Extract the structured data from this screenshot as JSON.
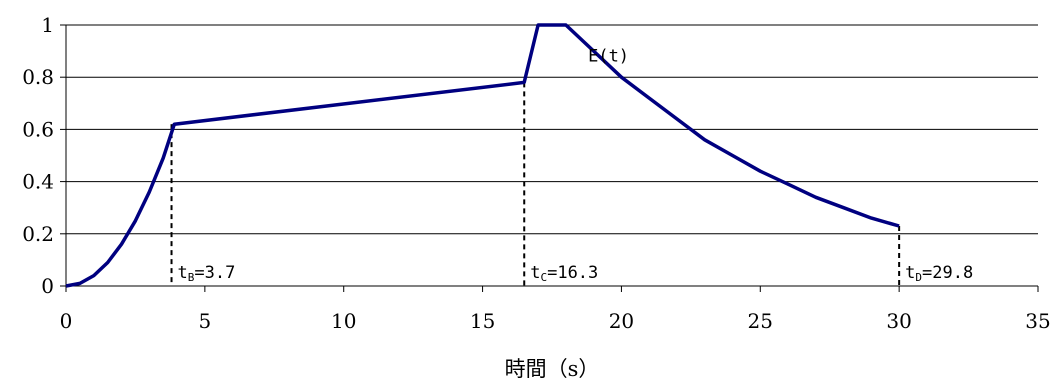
{
  "chart_data": {
    "type": "line",
    "xlabel": "時間（s）",
    "ylabel": "",
    "xlim": [
      0,
      35
    ],
    "ylim": [
      0,
      1
    ],
    "x_ticks": [
      0,
      5,
      10,
      15,
      20,
      25,
      30,
      35
    ],
    "x_tick_labels": [
      "0",
      "5",
      "10",
      "15",
      "20",
      "25",
      "30",
      "35"
    ],
    "y_ticks": [
      0,
      0.2,
      0.4,
      0.6,
      0.8,
      1
    ],
    "y_tick_labels": [
      "0",
      "0.2",
      "0.4",
      "0.6",
      "0.8",
      "1"
    ],
    "grid": "horizontal",
    "series": [
      {
        "name": "E(t)",
        "color": "#000080",
        "x": [
          0,
          0.5,
          1.0,
          1.5,
          2.0,
          2.5,
          3.0,
          3.5,
          3.9,
          16.5,
          17.0,
          18.0,
          19.0,
          20.0,
          21.0,
          22.0,
          23.0,
          24.0,
          25.0,
          26.0,
          27.0,
          28.0,
          29.0,
          30.0
        ],
        "values": [
          0,
          0.01,
          0.04,
          0.09,
          0.16,
          0.25,
          0.36,
          0.49,
          0.62,
          0.78,
          1.0,
          1.0,
          0.9,
          0.8,
          0.72,
          0.64,
          0.56,
          0.5,
          0.44,
          0.39,
          0.34,
          0.3,
          0.26,
          0.23
        ]
      }
    ],
    "annotations": [
      {
        "label": "E(t)",
        "x": 18.8,
        "y": 0.86
      },
      {
        "base": "t",
        "sub": "B",
        "rest": "=3.7",
        "x": 3.8
      },
      {
        "base": "t",
        "sub": "C",
        "rest": "=16.3",
        "x": 16.5
      },
      {
        "base": "t",
        "sub": "D",
        "rest": "=29.8",
        "x": 30.0
      }
    ]
  }
}
